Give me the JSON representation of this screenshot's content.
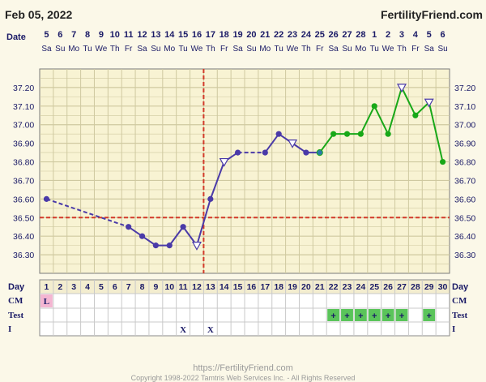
{
  "header": {
    "date": "Feb 05, 2022",
    "site": "FertilityFriend.com"
  },
  "row_labels": {
    "date": "Date",
    "day": "Day",
    "cm": "CM",
    "test": "Test",
    "intercourse": "I"
  },
  "footer": {
    "url": "https://FertilityFriend.com",
    "copyright": "Copyright 1998-2022 Tamtris Web Services Inc. - All Rights Reserved"
  },
  "colors": {
    "pre_line": "#4a3aa8",
    "post_line": "#18a818",
    "coverline": "#d23a2a",
    "grid": "#cfc9a0",
    "test_positive": "#5ac45a",
    "cm_label": "#f4b6d2"
  },
  "chart_data": {
    "type": "line",
    "title": "",
    "xlabel": "Day",
    "ylabel": "",
    "ylim": [
      36.2,
      37.3
    ],
    "y_ticks": [
      "36.30",
      "36.40",
      "36.50",
      "36.60",
      "36.70",
      "36.80",
      "36.90",
      "37.00",
      "37.10",
      "37.20"
    ],
    "cycle_days": [
      1,
      2,
      3,
      4,
      5,
      6,
      7,
      8,
      9,
      10,
      11,
      12,
      13,
      14,
      15,
      16,
      17,
      18,
      19,
      20,
      21,
      22,
      23,
      24,
      25,
      26,
      27,
      28,
      29,
      30
    ],
    "dates": [
      "5",
      "6",
      "7",
      "8",
      "9",
      "10",
      "11",
      "12",
      "13",
      "14",
      "15",
      "16",
      "17",
      "18",
      "19",
      "20",
      "21",
      "22",
      "23",
      "24",
      "25",
      "26",
      "27",
      "28",
      "1",
      "2",
      "3",
      "4",
      "5",
      "6"
    ],
    "weekdays": [
      "Sa",
      "Su",
      "Mo",
      "Tu",
      "We",
      "Th",
      "Fr",
      "Sa",
      "Su",
      "Mo",
      "Tu",
      "We",
      "Th",
      "Fr",
      "Sa",
      "Su",
      "Mo",
      "Tu",
      "We",
      "Th",
      "Fr",
      "Sa",
      "Su",
      "Mo",
      "Tu",
      "We",
      "Th",
      "Fr",
      "Sa",
      "Su"
    ],
    "temperatures": [
      36.6,
      null,
      null,
      null,
      null,
      null,
      36.45,
      36.4,
      36.35,
      36.35,
      36.45,
      36.35,
      36.6,
      36.8,
      36.85,
      null,
      36.85,
      36.95,
      36.9,
      36.85,
      36.85,
      36.95,
      36.95,
      36.95,
      37.1,
      36.95,
      37.2,
      37.05,
      37.12,
      36.8
    ],
    "open_markers": [
      12,
      14,
      19,
      27,
      29
    ],
    "coverline": 36.5,
    "ovulation_day": 12,
    "cm": {
      "1": "L"
    },
    "test_positive_days": [
      22,
      23,
      24,
      25,
      26,
      27,
      29
    ],
    "test_mark": "+",
    "intercourse_days": [
      11,
      13
    ],
    "intercourse_mark": "X"
  }
}
